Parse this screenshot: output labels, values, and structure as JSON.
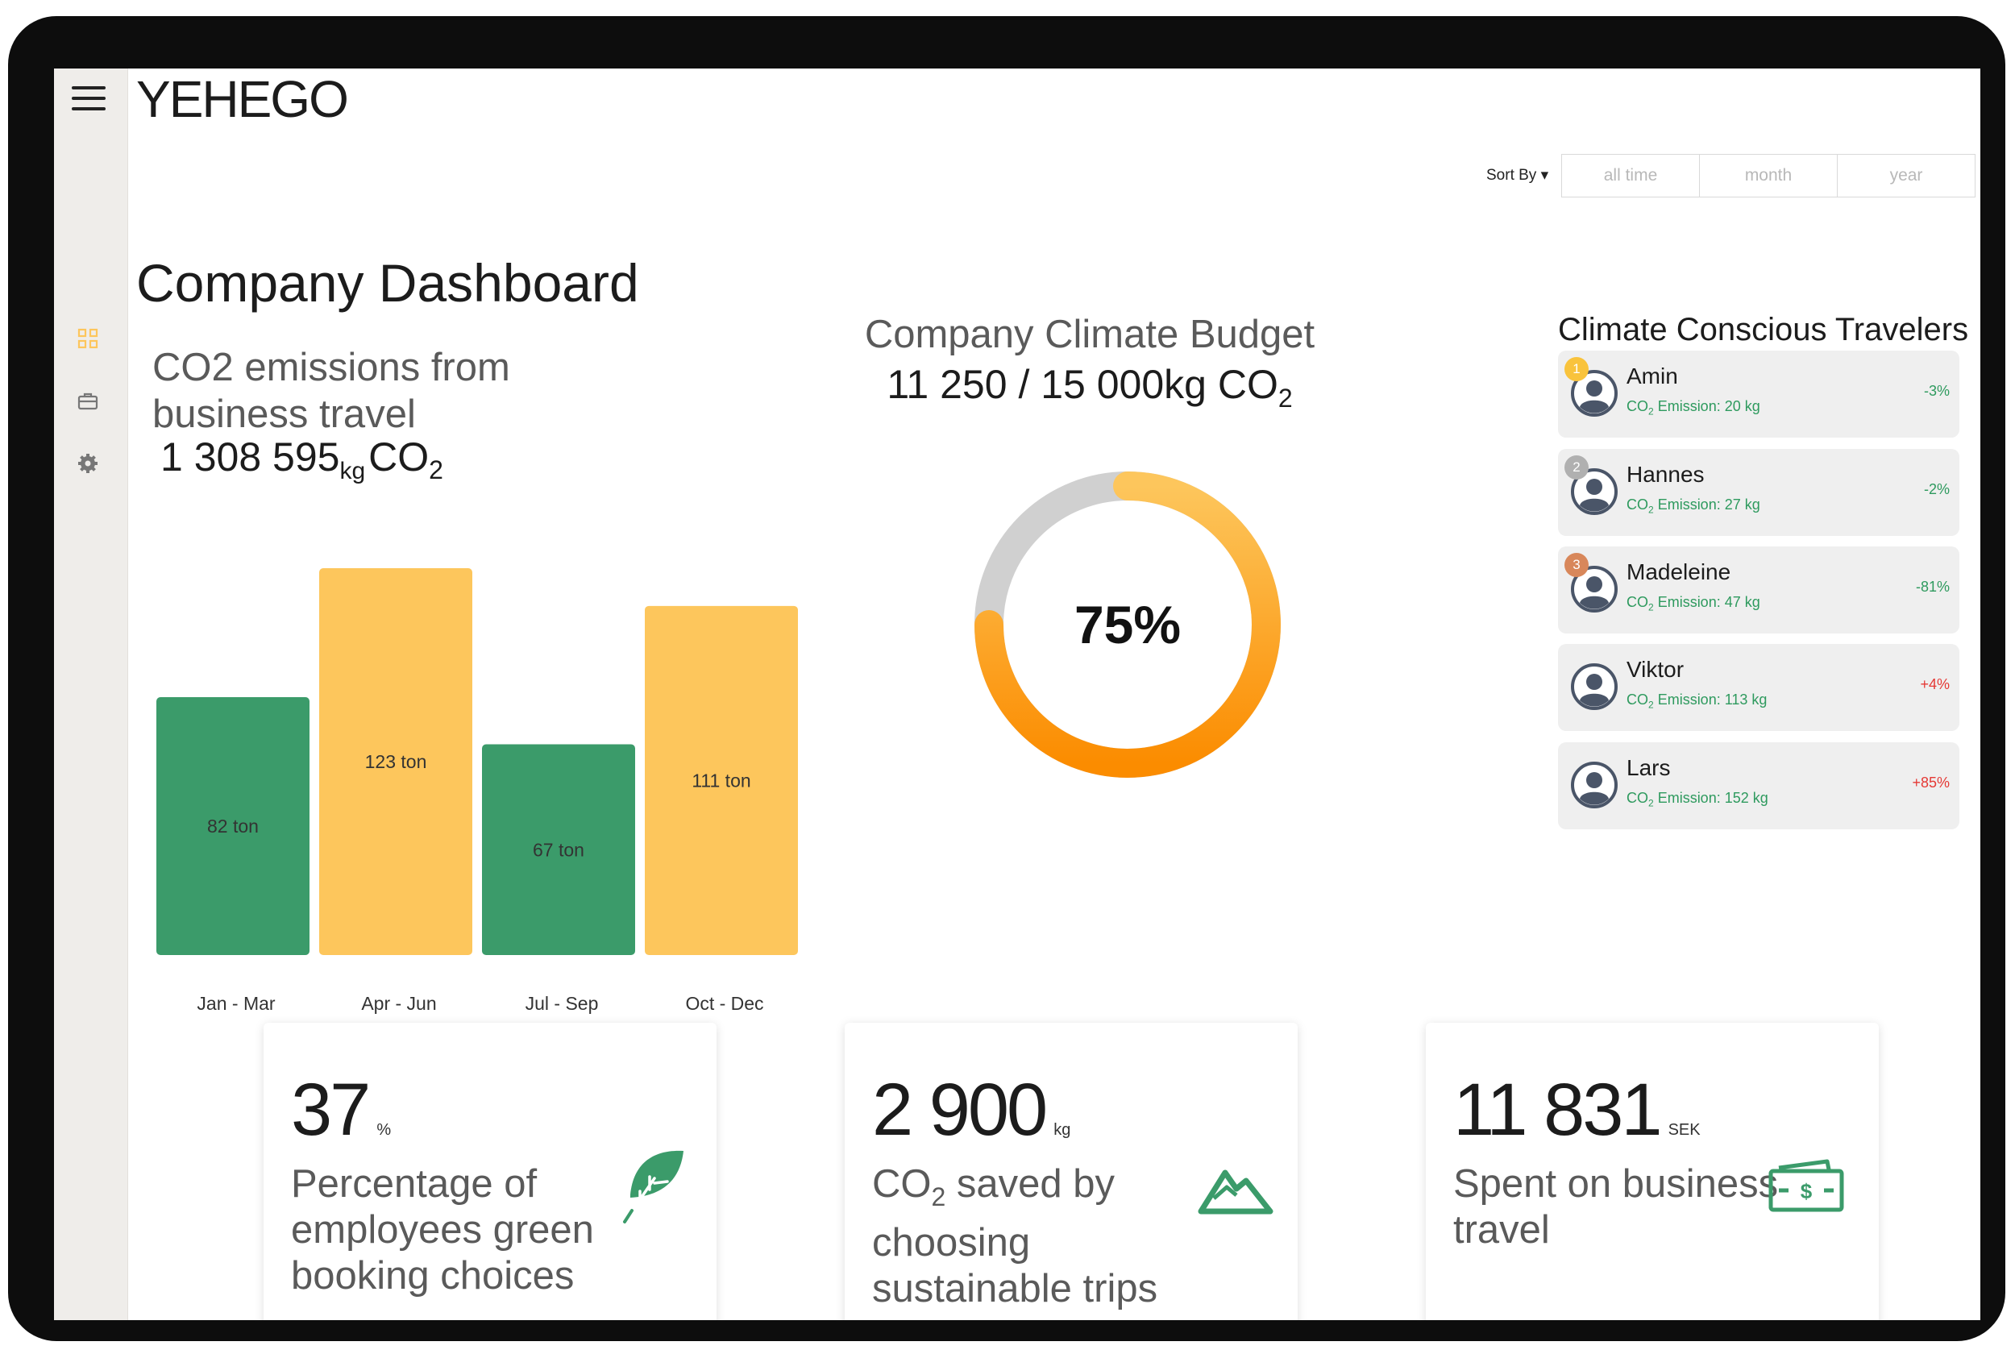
{
  "app": {
    "logo": "YEHEGO"
  },
  "sidebar": {
    "items": [
      {
        "name": "dashboard",
        "icon": "grid-icon",
        "active": true
      },
      {
        "name": "trips",
        "icon": "briefcase-icon",
        "active": false
      },
      {
        "name": "settings",
        "icon": "gear-icon",
        "active": false
      }
    ]
  },
  "filters": {
    "sort_label": "Sort By",
    "options": [
      "all time",
      "month",
      "year"
    ]
  },
  "page": {
    "title": "Company Dashboard"
  },
  "emissions": {
    "title": "CO2 emissions from business travel",
    "total": "1 308 595",
    "unit": "kg",
    "substance": "CO",
    "substance_sub": "2"
  },
  "chart_data": {
    "type": "bar",
    "categories": [
      "Jan - Mar",
      "Apr - Jun",
      "Jul - Sep",
      "Oct - Dec"
    ],
    "values": [
      82,
      123,
      67,
      111
    ],
    "value_labels": [
      "82 ton",
      "123 ton",
      "67 ton",
      "111 ton"
    ],
    "colors": [
      "#3b9b6a",
      "#fdc65c",
      "#3b9b6a",
      "#fdc65c"
    ],
    "unit": "ton",
    "ylim": [
      0,
      123
    ],
    "grid": false
  },
  "budget": {
    "title": "Company Climate Budget",
    "value": "11 250 / 15 000kg CO",
    "value_sub": "2",
    "used": 11250,
    "total": 15000,
    "percent_label": "75%",
    "colors": {
      "track": "#d0d0d0",
      "fill_start": "#fdc65c",
      "fill_end": "#fb8c00"
    }
  },
  "travelers": {
    "title": "Climate Conscious Travelers",
    "emission_prefix": "CO",
    "emission_prefix_sub": "2",
    "list": [
      {
        "rank": "1",
        "rank_color": "#f9c33c",
        "name": "Amin",
        "emission": " Emission: 20 kg",
        "change": "-3%",
        "change_color": "#2e9a5e"
      },
      {
        "rank": "2",
        "rank_color": "#b0b0b0",
        "name": "Hannes",
        "emission": " Emission: 27 kg",
        "change": "-2%",
        "change_color": "#2e9a5e"
      },
      {
        "rank": "3",
        "rank_color": "#d8875a",
        "name": "Madeleine",
        "emission": " Emission: 47 kg",
        "change": "-81%",
        "change_color": "#2e9a5e"
      },
      {
        "rank": "",
        "rank_color": "",
        "name": "Viktor",
        "emission": " Emission: 113 kg",
        "change": "+4%",
        "change_color": "#e53935"
      },
      {
        "rank": "",
        "rank_color": "",
        "name": "Lars",
        "emission": " Emission: 152 kg",
        "change": "+85%",
        "change_color": "#e53935"
      }
    ]
  },
  "stats": [
    {
      "value": "37",
      "unit": "%",
      "desc": "Percentage of employees green booking choices",
      "icon": "leaf-icon"
    },
    {
      "value": "2 900",
      "unit": "kg",
      "desc_pre": "CO",
      "desc_sub": "2",
      "desc_post": " saved by choosing sustainable trips",
      "icon": "mountain-icon"
    },
    {
      "value": "11 831",
      "unit": "SEK",
      "desc": "Spent on business travel",
      "icon": "money-icon"
    }
  ]
}
